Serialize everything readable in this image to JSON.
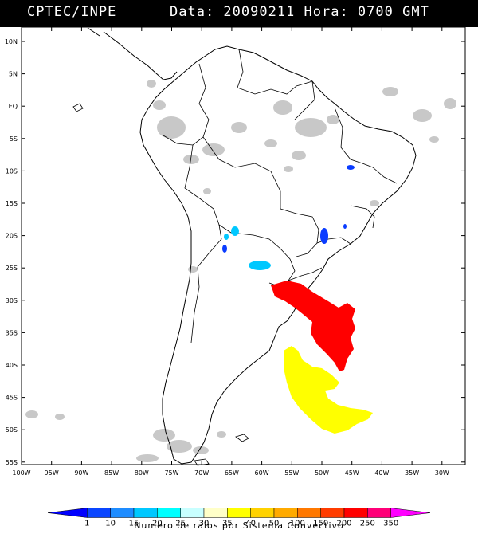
{
  "header": {
    "source": "CPTEC/INPE",
    "info": "Data: 20090211  Hora: 0700 GMT"
  },
  "map": {
    "lat_labels": [
      "10N",
      "5N",
      "EQ",
      "5S",
      "10S",
      "15S",
      "20S",
      "25S",
      "30S",
      "35S",
      "40S",
      "45S",
      "50S",
      "55S"
    ],
    "lon_labels": [
      "100W",
      "95W",
      "90W",
      "85W",
      "80W",
      "75W",
      "70W",
      "65W",
      "60W",
      "55W",
      "50W",
      "45W",
      "40W",
      "35W",
      "30W"
    ],
    "land_color": "#ffffff",
    "ocean_color": "#ffffff",
    "cloud_color": "#c8c8c8"
  },
  "legend": {
    "title": "Numero de raios por Sistema Convectivo",
    "values": [
      "1",
      "10",
      "15",
      "20",
      "25",
      "30",
      "35",
      "40",
      "50",
      "100",
      "150",
      "200",
      "250",
      "350"
    ],
    "colors": [
      "#0000ff",
      "#0a46ff",
      "#1e8cff",
      "#00c8ff",
      "#00ffff",
      "#c8ffff",
      "#ffffc8",
      "#ffff00",
      "#ffd200",
      "#ffaa00",
      "#ff7800",
      "#ff3c00",
      "#ff0000",
      "#ff0078",
      "#ff00ff"
    ]
  },
  "systems": [
    {
      "region": "north-east Brazil",
      "color": "#0a3cff"
    },
    {
      "region": "Bolivia / Paraguay",
      "color": "#00c8ff"
    },
    {
      "region": "south-east Brazil",
      "color": "#0a3cff"
    },
    {
      "region": "south Brazil / Uruguay",
      "color": "#ff0000"
    },
    {
      "region": "Patagonian Atlantic",
      "color": "#ffff00"
    }
  ]
}
